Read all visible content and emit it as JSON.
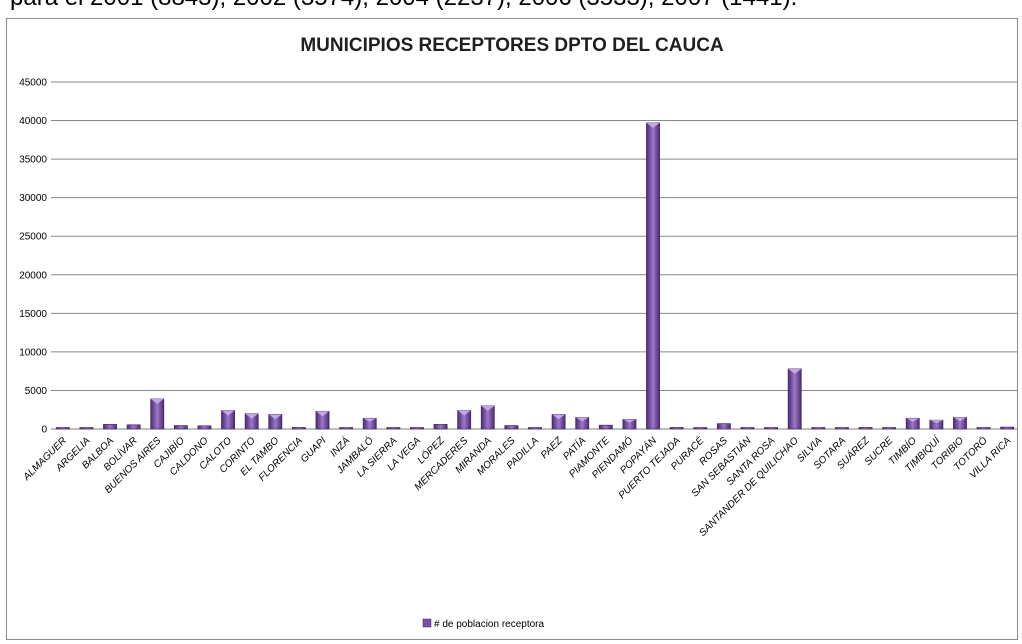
{
  "top_caption": "para el 2001 (8843), 2002 (3574), 2004 (2237), 2006 (3533), 2007 (1441).",
  "chart_data": {
    "type": "bar",
    "title": "MUNICIPIOS RECEPTORES DPTO DEL CAUCA",
    "xlabel": "",
    "ylabel": "",
    "ylim": [
      0,
      45000
    ],
    "yticks": [
      0,
      5000,
      10000,
      15000,
      20000,
      25000,
      30000,
      35000,
      40000,
      45000
    ],
    "grid": true,
    "legend_position": "bottom",
    "bar_color": "#7a4fa8",
    "series": [
      {
        "name": "# de poblacion receptora",
        "values": [
          60,
          120,
          600,
          550,
          3900,
          450,
          420,
          2400,
          2000,
          1900,
          200,
          2300,
          60,
          1400,
          60,
          100,
          600,
          2400,
          3000,
          450,
          60,
          1900,
          1500,
          500,
          1250,
          39700,
          200,
          100,
          700,
          80,
          60,
          7800,
          80,
          80,
          200,
          80,
          1400,
          1150,
          1500,
          60,
          250
        ]
      }
    ],
    "categories": [
      "ALMAGUER",
      "ARGELIA",
      "BALBOA",
      "BOLÍVAR",
      "BUENOS AIRES",
      "CAJIBÍO",
      "CALDONO",
      "CALOTO",
      "CORINTO",
      "EL TAMBO",
      "FLORENCIA",
      "GUAPI",
      "INZÁ",
      "JAMBALÓ",
      "LA SIERRA",
      "LA VEGA",
      "LÓPEZ",
      "MERCADERES",
      "MIRANDA",
      "MORALES",
      "PADILLA",
      "PAEZ",
      "PATÍA",
      "PIAMONTE",
      "PIENDAMÓ",
      "POPAYÁN",
      "PUERTO TEJADA",
      "PURACÉ",
      "ROSAS",
      "SAN SEBASTIÁN",
      "SANTA ROSA",
      "SANTANDER DE QUILICHAO",
      "SILVIA",
      "SOTARA",
      "SUÁREZ",
      "SUCRE",
      "TIMBÍO",
      "TIMBIQUÍ",
      "TORIBIO",
      "TOTORÓ",
      "VILLA RICA"
    ]
  }
}
